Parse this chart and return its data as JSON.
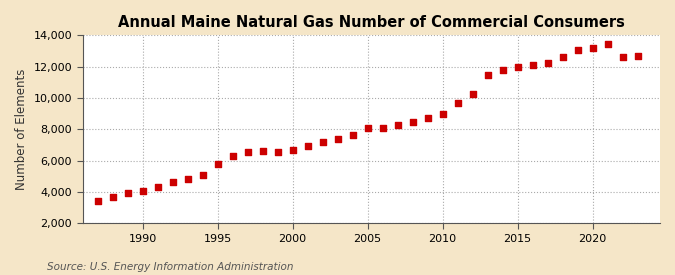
{
  "title": "Annual Maine Natural Gas Number of Commercial Consumers",
  "ylabel": "Number of Elements",
  "source": "Source: U.S. Energy Information Administration",
  "background_color": "#f5e6c8",
  "plot_bg_color": "#ffffff",
  "marker_color": "#cc0000",
  "years": [
    1987,
    1988,
    1989,
    1990,
    1991,
    1992,
    1993,
    1994,
    1995,
    1996,
    1997,
    1998,
    1999,
    2000,
    2001,
    2002,
    2003,
    2004,
    2005,
    2006,
    2007,
    2008,
    2009,
    2010,
    2011,
    2012,
    2013,
    2014,
    2015,
    2016,
    2017,
    2018,
    2019,
    2020,
    2021,
    2022,
    2023
  ],
  "values": [
    3400,
    3650,
    3900,
    4050,
    4300,
    4600,
    4800,
    5050,
    5750,
    6300,
    6550,
    6600,
    6550,
    6700,
    6950,
    7200,
    7400,
    7600,
    8100,
    8100,
    8250,
    8450,
    8700,
    8950,
    9700,
    10250,
    11450,
    11800,
    11950,
    12100,
    12250,
    12600,
    13050,
    13200,
    13450,
    12600,
    12650
  ],
  "ylim": [
    2000,
    14000
  ],
  "yticks": [
    2000,
    4000,
    6000,
    8000,
    10000,
    12000,
    14000
  ],
  "xticks": [
    1990,
    1995,
    2000,
    2005,
    2010,
    2015,
    2020
  ],
  "xlim": [
    1986,
    2024.5
  ],
  "title_fontsize": 10.5,
  "label_fontsize": 8.5,
  "tick_fontsize": 8,
  "source_fontsize": 7.5
}
